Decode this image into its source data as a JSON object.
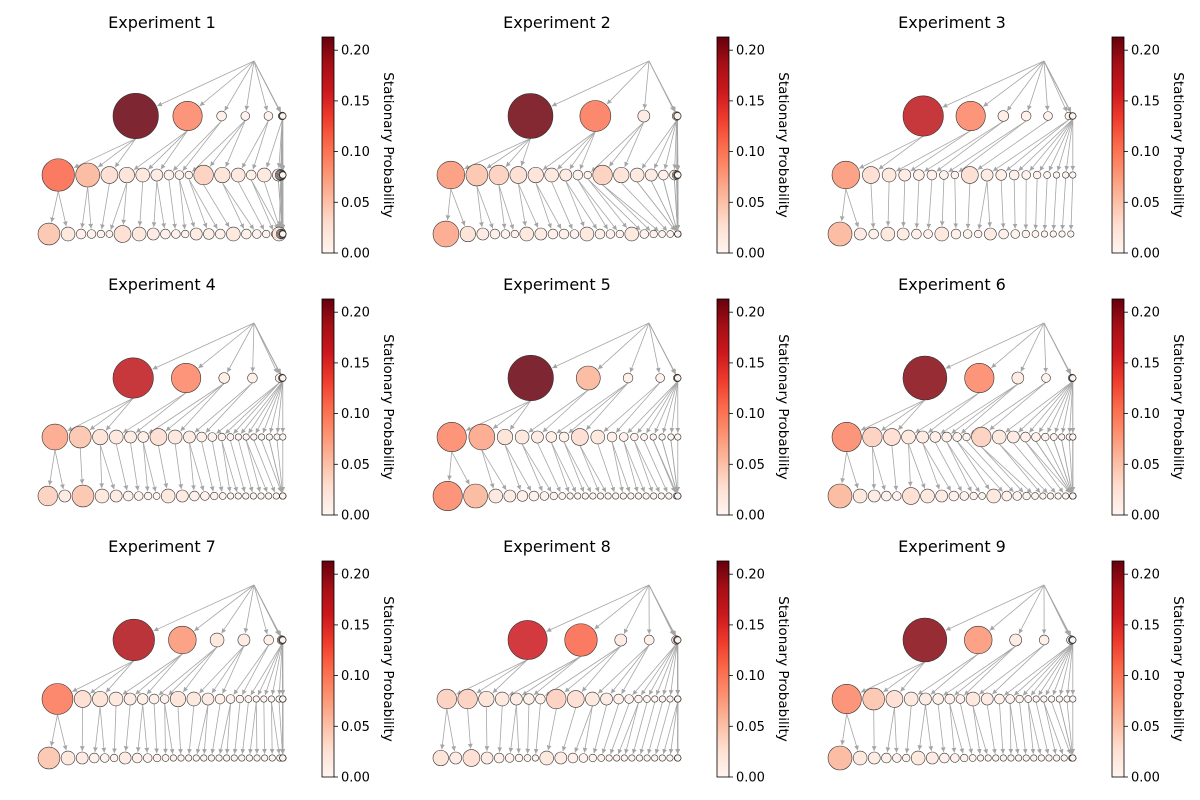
{
  "colors": {
    "cmap": [
      "#fff5f0",
      "#fee0d2",
      "#fcbba1",
      "#fc9272",
      "#fb6a4a",
      "#ef3b2c",
      "#cb181d",
      "#a50f15",
      "#67000d"
    ],
    "edge": "#888888",
    "node_edge": "#333333"
  },
  "colorbar": {
    "label": "Stationary Probability",
    "ticks": [
      "0.00",
      "0.05",
      "0.10",
      "0.15",
      "0.20"
    ],
    "tick_values": [
      0,
      0.05,
      0.1,
      0.15,
      0.2
    ],
    "range": [
      0,
      0.213
    ]
  },
  "chart_data": [
    {
      "type": "tree-network",
      "title": "Experiment 1",
      "levels": [
        [
          0.215,
          0.09,
          0.01,
          0.008,
          0.008,
          0.006,
          0.006,
          0.005,
          0.004
        ],
        [
          0.11,
          0.06,
          0.03,
          0.025,
          0.02,
          0.015,
          0.01,
          0.008,
          0.006,
          0.04,
          0.025,
          0.02,
          0.01,
          0.02,
          0.015,
          0.012,
          0.01,
          0.008,
          0.006,
          0.005,
          0.004,
          0.004,
          0.003
        ],
        [
          0.05,
          0.02,
          0.01,
          0.008,
          0.006,
          0.005,
          0.03,
          0.02,
          0.015,
          0.01,
          0.008,
          0.006,
          0.015,
          0.012,
          0.01,
          0.02,
          0.01,
          0.008,
          0.006,
          0.005,
          0.01,
          0.008,
          0.006,
          0.005,
          0.004,
          0.02,
          0.01,
          0.008,
          0.006,
          0.005,
          0.004,
          0.004,
          0.003,
          0.003,
          0.003,
          0.003
        ]
      ]
    },
    {
      "type": "tree-network",
      "title": "Experiment 2",
      "levels": [
        [
          0.21,
          0.1,
          0.015,
          0.008,
          0.006,
          0.005
        ],
        [
          0.08,
          0.05,
          0.04,
          0.03,
          0.025,
          0.02,
          0.015,
          0.01,
          0.006,
          0.04,
          0.025,
          0.02,
          0.015,
          0.01,
          0.01,
          0.008,
          0.006,
          0.005,
          0.005,
          0.004,
          0.004,
          0.003
        ],
        [
          0.07,
          0.025,
          0.015,
          0.01,
          0.008,
          0.006,
          0.02,
          0.015,
          0.01,
          0.01,
          0.008,
          0.02,
          0.01,
          0.008,
          0.006,
          0.02,
          0.008,
          0.006,
          0.005,
          0.005,
          0.004,
          0.004,
          0.004,
          0.003,
          0.003,
          0.003,
          0.003,
          0.003,
          0.003,
          0.003,
          0.003,
          0.003,
          0.003,
          0.003,
          0.003,
          0.003,
          0.003,
          0.003,
          0.003,
          0.003
        ]
      ]
    },
    {
      "type": "tree-network",
      "title": "Experiment 3",
      "levels": [
        [
          0.17,
          0.09,
          0.012,
          0.01,
          0.008,
          0.006,
          0.005,
          0.004,
          0.004,
          0.003
        ],
        [
          0.08,
          0.03,
          0.02,
          0.015,
          0.012,
          0.01,
          0.008,
          0.006,
          0.03,
          0.015,
          0.012,
          0.01,
          0.008,
          0.006,
          0.005,
          0.004,
          0.004,
          0.003
        ],
        [
          0.06,
          0.015,
          0.01,
          0.02,
          0.015,
          0.01,
          0.008,
          0.02,
          0.01,
          0.008,
          0.006,
          0.015,
          0.01,
          0.008,
          0.006,
          0.005,
          0.004,
          0.004,
          0.003,
          0.003
        ]
      ]
    },
    {
      "type": "tree-network",
      "title": "Experiment 4",
      "levels": [
        [
          0.17,
          0.09,
          0.012,
          0.01,
          0.008,
          0.006,
          0.005,
          0.004
        ],
        [
          0.07,
          0.05,
          0.025,
          0.02,
          0.015,
          0.012,
          0.03,
          0.02,
          0.015,
          0.01,
          0.008,
          0.006,
          0.005,
          0.004,
          0.004,
          0.003,
          0.003,
          0.003,
          0.003,
          0.003
        ],
        [
          0.04,
          0.015,
          0.05,
          0.02,
          0.015,
          0.01,
          0.008,
          0.006,
          0.005,
          0.02,
          0.015,
          0.01,
          0.008,
          0.006,
          0.005,
          0.004,
          0.004,
          0.003,
          0.003,
          0.003,
          0.003,
          0.003,
          0.003,
          0.003,
          0.003,
          0.003,
          0.003
        ]
      ]
    },
    {
      "type": "tree-network",
      "title": "Experiment 5",
      "levels": [
        [
          0.215,
          0.06,
          0.01,
          0.008,
          0.006,
          0.005,
          0.004
        ],
        [
          0.09,
          0.07,
          0.025,
          0.02,
          0.015,
          0.012,
          0.01,
          0.03,
          0.02,
          0.01,
          0.008,
          0.006,
          0.005,
          0.004,
          0.004,
          0.003,
          0.003
        ],
        [
          0.09,
          0.06,
          0.02,
          0.015,
          0.012,
          0.01,
          0.008,
          0.006,
          0.005,
          0.004,
          0.004,
          0.003,
          0.003,
          0.003,
          0.003,
          0.003,
          0.003,
          0.003,
          0.003,
          0.003,
          0.003,
          0.003,
          0.003,
          0.003,
          0.003,
          0.003,
          0.003,
          0.003,
          0.003,
          0.003
        ]
      ]
    },
    {
      "type": "tree-network",
      "title": "Experiment 6",
      "levels": [
        [
          0.2,
          0.09,
          0.015,
          0.008,
          0.006,
          0.005,
          0.004,
          0.004
        ],
        [
          0.09,
          0.04,
          0.03,
          0.02,
          0.015,
          0.012,
          0.01,
          0.008,
          0.006,
          0.04,
          0.02,
          0.015,
          0.01,
          0.008,
          0.006,
          0.005,
          0.004,
          0.004,
          0.003,
          0.003
        ],
        [
          0.06,
          0.02,
          0.015,
          0.01,
          0.008,
          0.03,
          0.02,
          0.015,
          0.01,
          0.008,
          0.006,
          0.005,
          0.02,
          0.01,
          0.008,
          0.006,
          0.005,
          0.004,
          0.004,
          0.003,
          0.003,
          0.003,
          0.003,
          0.003,
          0.003,
          0.003,
          0.003,
          0.003,
          0.003,
          0.003,
          0.003,
          0.003,
          0.003
        ]
      ]
    },
    {
      "type": "tree-network",
      "title": "Experiment 7",
      "levels": [
        [
          0.18,
          0.08,
          0.02,
          0.015,
          0.01,
          0.008,
          0.006,
          0.005,
          0.004
        ],
        [
          0.1,
          0.03,
          0.025,
          0.02,
          0.015,
          0.012,
          0.01,
          0.008,
          0.025,
          0.02,
          0.015,
          0.01,
          0.008,
          0.006,
          0.005,
          0.004,
          0.004,
          0.003,
          0.003,
          0.003,
          0.003,
          0.003,
          0.003,
          0.003,
          0.003
        ],
        [
          0.05,
          0.02,
          0.015,
          0.01,
          0.008,
          0.006,
          0.015,
          0.01,
          0.008,
          0.006,
          0.005,
          0.004,
          0.004,
          0.003,
          0.003,
          0.003,
          0.003,
          0.003,
          0.003,
          0.003,
          0.003,
          0.003,
          0.003,
          0.003,
          0.003,
          0.003,
          0.003,
          0.003,
          0.003,
          0.003,
          0.003,
          0.003,
          0.003,
          0.003,
          0.003
        ]
      ]
    },
    {
      "type": "tree-network",
      "title": "Experiment 8",
      "levels": [
        [
          0.16,
          0.11,
          0.015,
          0.01,
          0.008,
          0.006,
          0.005,
          0.004
        ],
        [
          0.04,
          0.04,
          0.025,
          0.02,
          0.015,
          0.012,
          0.01,
          0.04,
          0.03,
          0.02,
          0.015,
          0.01,
          0.008,
          0.006,
          0.005,
          0.004,
          0.004,
          0.003,
          0.003,
          0.003,
          0.003,
          0.003,
          0.003
        ],
        [
          0.025,
          0.015,
          0.03,
          0.015,
          0.01,
          0.008,
          0.006,
          0.005,
          0.004,
          0.02,
          0.015,
          0.01,
          0.008,
          0.006,
          0.005,
          0.004,
          0.004,
          0.003,
          0.003,
          0.003,
          0.003,
          0.003,
          0.003,
          0.003,
          0.003,
          0.003,
          0.003,
          0.003
        ]
      ]
    },
    {
      "type": "tree-network",
      "title": "Experiment 9",
      "levels": [
        [
          0.2,
          0.08,
          0.015,
          0.01,
          0.008,
          0.006,
          0.005,
          0.004
        ],
        [
          0.09,
          0.05,
          0.03,
          0.02,
          0.015,
          0.012,
          0.01,
          0.008,
          0.02,
          0.015,
          0.01,
          0.008,
          0.006,
          0.005,
          0.004,
          0.004,
          0.003,
          0.003,
          0.003,
          0.003
        ],
        [
          0.06,
          0.02,
          0.015,
          0.01,
          0.008,
          0.006,
          0.02,
          0.015,
          0.01,
          0.008,
          0.006,
          0.005,
          0.004,
          0.004,
          0.003,
          0.003,
          0.003,
          0.003,
          0.003,
          0.003,
          0.003,
          0.003,
          0.003,
          0.003,
          0.003,
          0.003,
          0.003,
          0.003,
          0.003
        ]
      ]
    }
  ]
}
